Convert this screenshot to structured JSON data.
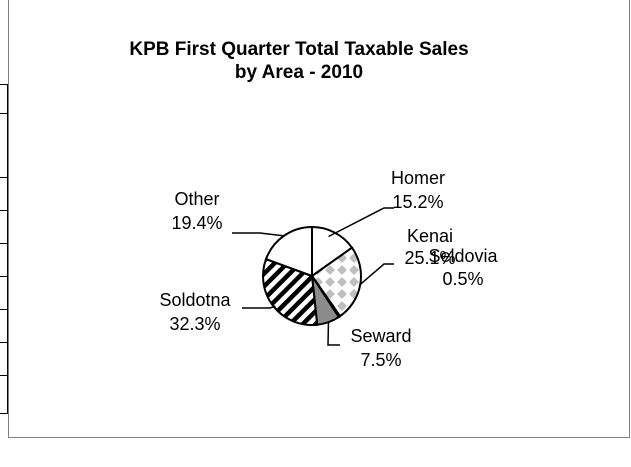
{
  "chart_data": {
    "type": "pie",
    "title": "KPB First Quarter Total Taxable Sales",
    "subtitle": "by Area - 2010",
    "slices": [
      {
        "label": "Homer",
        "value": 15.2,
        "value_text": "15.2%",
        "pattern": "white"
      },
      {
        "label": "Kenai",
        "value": 25.1,
        "value_text": "25.1%",
        "pattern": "diamonds"
      },
      {
        "label": "Seldovia",
        "value": 0.5,
        "value_text": "0.5%",
        "pattern": "white"
      },
      {
        "label": "Seward",
        "value": 7.5,
        "value_text": "7.5%",
        "pattern": "gray"
      },
      {
        "label": "Soldotna",
        "value": 32.3,
        "value_text": "32.3%",
        "pattern": "diagonal-stripes"
      },
      {
        "label": "Other",
        "value": 19.4,
        "value_text": "19.4%",
        "pattern": "white"
      }
    ],
    "colors": {
      "gray": "#8c8c8c",
      "diamond": "#bfbfbf",
      "stroke": "#000000",
      "white": "#ffffff"
    }
  }
}
